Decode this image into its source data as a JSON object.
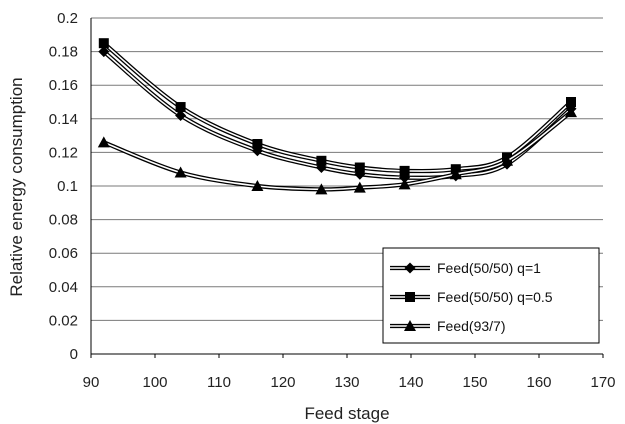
{
  "chart_data": {
    "type": "line",
    "title": "",
    "xlabel": "Feed stage",
    "ylabel": "Relative energy consumption",
    "xlim": [
      90,
      170
    ],
    "ylim": [
      0,
      0.2
    ],
    "x_ticks": [
      "90",
      "100",
      "110",
      "120",
      "130",
      "140",
      "150",
      "160",
      "170"
    ],
    "y_ticks": [
      "0",
      "0.02",
      "0.04",
      "0.06",
      "0.08",
      "0.1",
      "0.12",
      "0.14",
      "0.16",
      "0.18",
      "0.2"
    ],
    "grid": "horizontal",
    "legend_position": "bottom-right",
    "series": [
      {
        "name": "Feed(50/50) q=1",
        "marker": "diamond",
        "x": [
          92,
          104,
          116,
          126,
          132,
          139,
          147,
          155,
          165
        ],
        "y": [
          0.18,
          0.142,
          0.121,
          0.111,
          0.107,
          0.105,
          0.106,
          0.113,
          0.146
        ]
      },
      {
        "name": "Feed(50/50) q=0.5",
        "marker": "square",
        "x": [
          92,
          104,
          116,
          126,
          132,
          139,
          147,
          155,
          165
        ],
        "y": [
          0.185,
          0.147,
          0.125,
          0.115,
          0.111,
          0.109,
          0.11,
          0.117,
          0.15
        ]
      },
      {
        "name": "Feed(93/7)",
        "marker": "triangle",
        "x": [
          92,
          104,
          116,
          126,
          132,
          139,
          147,
          155,
          165
        ],
        "y": [
          0.126,
          0.108,
          0.1,
          0.098,
          0.099,
          0.101,
          0.107,
          0.115,
          0.144
        ]
      }
    ]
  }
}
